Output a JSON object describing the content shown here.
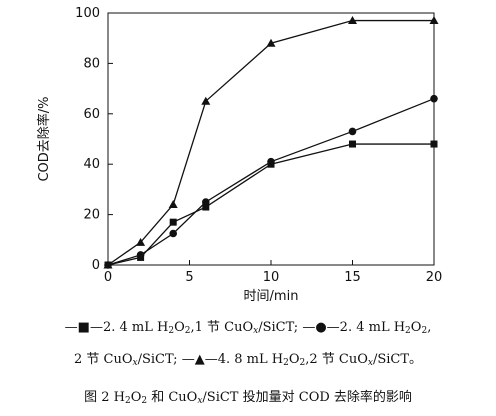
{
  "chart_data": {
    "type": "line",
    "xlabel": "时间/min",
    "ylabel": "COD去除率/%",
    "xlim": [
      0,
      20
    ],
    "ylim": [
      0,
      100
    ],
    "xticks": [
      0,
      5,
      10,
      15,
      20
    ],
    "yticks": [
      0,
      20,
      40,
      60,
      80,
      100
    ],
    "grid": false,
    "series": [
      {
        "marker": "square",
        "x": [
          0,
          2,
          4,
          6,
          10,
          15,
          20
        ],
        "y": [
          0,
          3,
          17,
          23,
          40,
          48,
          48
        ]
      },
      {
        "marker": "circle",
        "x": [
          0,
          2,
          4,
          6,
          10,
          15,
          20
        ],
        "y": [
          0,
          4,
          12.5,
          25,
          41,
          53,
          66
        ]
      },
      {
        "marker": "triangle",
        "x": [
          0,
          2,
          4,
          6,
          10,
          15,
          20
        ],
        "y": [
          0,
          9,
          24,
          65,
          88,
          97,
          97
        ]
      }
    ]
  },
  "legend": {
    "line1_a": "—■—2. 4 mL H",
    "line1_a_sub1": "2",
    "line1_a_mid": "O",
    "line1_a_sub2": "2",
    "line1_a_rest": ",1 节 CuO",
    "line1_a_subx": "x",
    "line1_a_tail": "/SiCT; ",
    "line1_b": "—●—2. 4 mL H",
    "line1_b_sub1": "2",
    "line1_b_mid": "O",
    "line1_b_sub2": "2",
    "line1_b_tail": ",",
    "line2_a": "2 节 CuO",
    "line2_a_subx": "x",
    "line2_a_tail": "/SiCT; ",
    "line2_b": "—▲—4. 8 mL H",
    "line2_b_sub1": "2",
    "line2_b_mid": "O",
    "line2_b_sub2": "2",
    "line2_b_rest": ",2 节 CuO",
    "line2_b_subx": "x",
    "line2_b_tail": "/SiCT。"
  },
  "caption": {
    "prefix": "图 2   H",
    "sub1": "2",
    "mid1": "O",
    "sub2": "2",
    "mid2": " 和 CuO",
    "subx": "x",
    "suffix": "/SiCT 投加量对 COD 去除率的影响"
  }
}
